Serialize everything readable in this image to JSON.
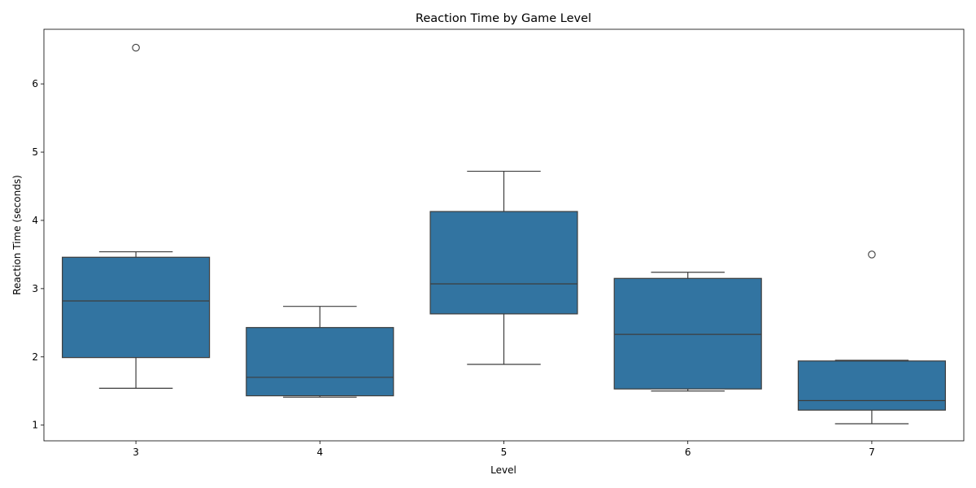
{
  "chart_data": {
    "type": "box",
    "title": "Reaction Time by Game Level",
    "xlabel": "Level",
    "ylabel": "Reaction Time (seconds)",
    "categories": [
      "3",
      "4",
      "5",
      "6",
      "7"
    ],
    "yticks": [
      "1",
      "2",
      "3",
      "4",
      "5",
      "6"
    ],
    "ylim": [
      0.77,
      6.8
    ],
    "grid": false,
    "colors": {
      "box": "#3274a1",
      "line": "#3d3d3d"
    },
    "boxes": [
      {
        "category": "3",
        "whisker_low": 1.54,
        "q1": 1.99,
        "median": 2.82,
        "q3": 3.46,
        "whisker_high": 3.54,
        "outliers": [
          6.53
        ]
      },
      {
        "category": "4",
        "whisker_low": 1.41,
        "q1": 1.43,
        "median": 1.7,
        "q3": 2.43,
        "whisker_high": 2.74,
        "outliers": []
      },
      {
        "category": "5",
        "whisker_low": 1.89,
        "q1": 2.63,
        "median": 3.07,
        "q3": 4.13,
        "whisker_high": 4.72,
        "outliers": []
      },
      {
        "category": "6",
        "whisker_low": 1.5,
        "q1": 1.53,
        "median": 2.33,
        "q3": 3.15,
        "whisker_high": 3.24,
        "outliers": []
      },
      {
        "category": "7",
        "whisker_low": 1.02,
        "q1": 1.22,
        "median": 1.36,
        "q3": 1.94,
        "whisker_high": 1.95,
        "outliers": [
          3.5
        ]
      }
    ]
  }
}
